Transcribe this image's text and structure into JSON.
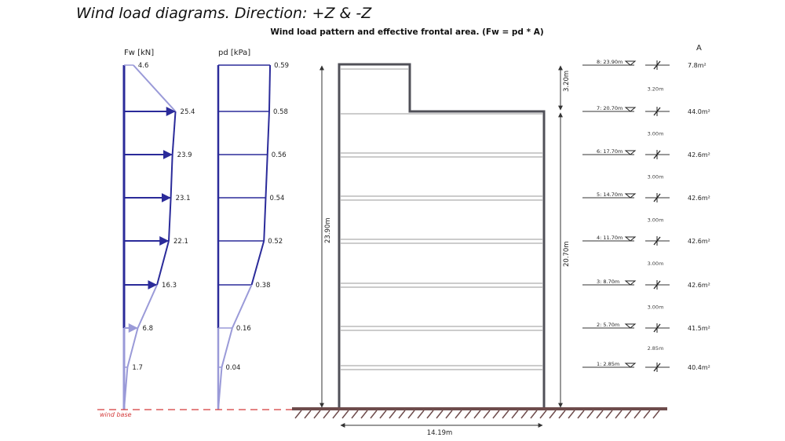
{
  "title": "Wind load diagrams. Direction: +Z & -Z",
  "subtitle": "Wind load pattern  and  effective frontal area. (Fw = pd * A)",
  "fw_label": "Fw [kN]",
  "pd_label": "pd [kPa]",
  "area_label": "A",
  "wind_base_label": "wind base",
  "width_label": "14.19m",
  "total_height_label": "23.90m",
  "main_height_label": "20.70m",
  "top_height_label": "3.20m",
  "fw_values": [
    {
      "text": "4.6",
      "value": 4.6
    },
    {
      "text": "25.4",
      "value": 25.4
    },
    {
      "text": "23.9",
      "value": 23.9
    },
    {
      "text": "23.1",
      "value": 23.1
    },
    {
      "text": "22.1",
      "value": 22.1
    },
    {
      "text": "16.3",
      "value": 16.3
    },
    {
      "text": "6.8",
      "value": 6.8
    },
    {
      "text": "1.7",
      "value": 1.7
    }
  ],
  "pd_values": [
    {
      "text": "0.59",
      "value": 0.59
    },
    {
      "text": "0.58",
      "value": 0.58
    },
    {
      "text": "0.56",
      "value": 0.56
    },
    {
      "text": "0.54",
      "value": 0.54
    },
    {
      "text": "0.52",
      "value": 0.52
    },
    {
      "text": "0.38",
      "value": 0.38
    },
    {
      "text": "0.16",
      "value": 0.16
    },
    {
      "text": "0.04",
      "value": 0.04
    }
  ],
  "levels": [
    {
      "label": "8:  23.90m",
      "area": "7.8m²",
      "elevation": 23.9
    },
    {
      "label": "7:  20.70m",
      "area": "44.0m²",
      "elevation": 20.7
    },
    {
      "label": "6:  17.70m",
      "area": "42.6m²",
      "elevation": 17.7
    },
    {
      "label": "5:  14.70m",
      "area": "42.6m²",
      "elevation": 14.7
    },
    {
      "label": "4:  11.70m",
      "area": "42.6m²",
      "elevation": 11.7
    },
    {
      "label": "3:  8.70m",
      "area": "42.6m²",
      "elevation": 8.7
    },
    {
      "label": "2:  5.70m",
      "area": "41.5m²",
      "elevation": 5.7
    },
    {
      "label": "1:  2.85m",
      "area": "40.4m²",
      "elevation": 2.85
    }
  ],
  "spacings": [
    "3.20m",
    "3.00m",
    "3.00m",
    "3.00m",
    "3.00m",
    "3.00m",
    "2.85m"
  ],
  "colors": {
    "load_dark": "#2b2b9a",
    "load_light": "#9a9ad8",
    "building": "#505058",
    "ground": "#6e4c4c",
    "wind_base": "#d43a3a"
  }
}
